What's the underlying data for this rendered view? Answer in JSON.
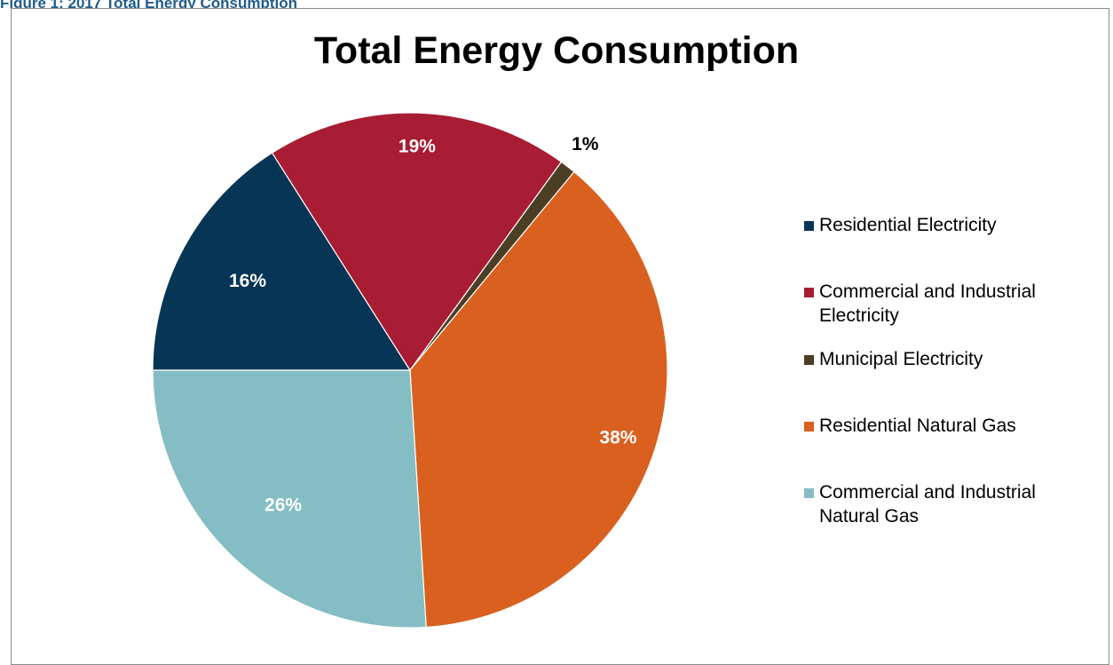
{
  "caption": "Figure 1: 2017 Total Energy Consumption",
  "chart_data": {
    "type": "pie",
    "title": "Total Energy Consumption",
    "slices": [
      {
        "label": "Residential Electricity",
        "value": 16,
        "data_label": "16%",
        "color": "#073555",
        "label_color": "#ffffff"
      },
      {
        "label": "Commercial and Industrial Electricity",
        "value": 19,
        "data_label": "19%",
        "color": "#a81c34",
        "label_color": "#ffffff"
      },
      {
        "label": "Municipal Electricity",
        "value": 1,
        "data_label": "1%",
        "color": "#4a3f25",
        "label_color": "#000000"
      },
      {
        "label": "Residential Natural Gas",
        "value": 38,
        "data_label": "38%",
        "color": "#d9601f",
        "label_color": "#ffffff"
      },
      {
        "label": "Commercial and Industrial Natural Gas",
        "value": 26,
        "data_label": "26%",
        "color": "#85bdc4",
        "label_color": "#ffffff"
      }
    ],
    "legend_position": "right"
  }
}
